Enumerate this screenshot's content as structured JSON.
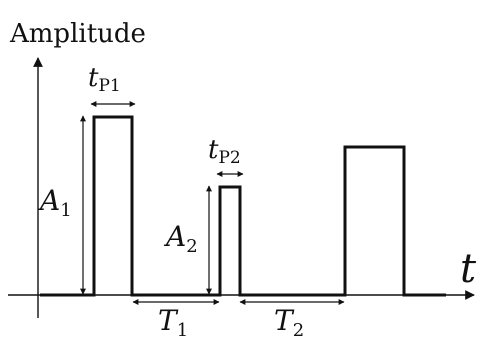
{
  "y_axis_label": "Amplitude",
  "x_axis_label": "t",
  "pulses": [
    {
      "amplitude_symbol": "A",
      "amplitude_index": "1",
      "width_symbol": "t",
      "width_index": "P1"
    },
    {
      "amplitude_symbol": "A",
      "amplitude_index": "2",
      "width_symbol": "t",
      "width_index": "P2"
    }
  ],
  "intervals": [
    {
      "symbol": "T",
      "index": "1"
    },
    {
      "symbol": "T",
      "index": "2"
    }
  ],
  "colors": {
    "line": "#111111",
    "background": "#ffffff"
  }
}
